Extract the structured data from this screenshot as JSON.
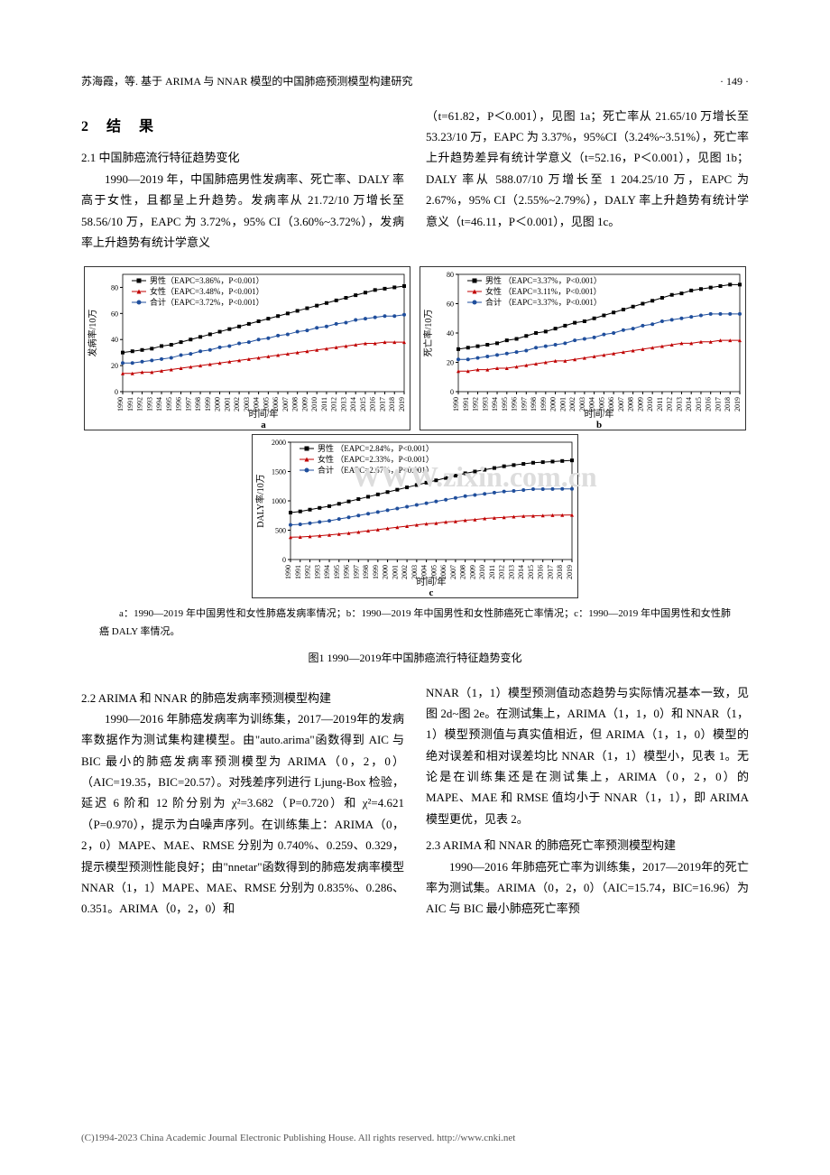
{
  "header": {
    "left": "苏海霞，等. 基于 ARIMA 与 NNAR 模型的中国肺癌预测模型构建研究",
    "right": "· 149 ·"
  },
  "section2": {
    "heading": "2  结  果",
    "sub21_title": "2.1  中国肺癌流行特征趋势变化",
    "sub21_para1_left": "1990—2019 年，中国肺癌男性发病率、死亡率、DALY 率高于女性，且都呈上升趋势。发病率从 21.72/10 万增长至 58.56/10 万，EAPC 为 3.72%，95% CI（3.60%~3.72%），发病率上升趋势有统计学意义",
    "sub21_para1_right": "（t=61.82，P＜0.001），见图 1a；死亡率从 21.65/10 万增长至 53.23/10 万，EAPC 为 3.37%，95%CI（3.24%~3.51%），死亡率上升趋势差异有统计学意义（t=52.16，P＜0.001），见图 1b；DALY 率从 588.07/10 万增长至 1 204.25/10 万，EAPC 为 2.67%，95% CI（2.55%~2.79%），DALY 率上升趋势有统计学意义（t=46.11，P＜0.001），见图 1c。"
  },
  "fig1": {
    "caption": "a：1990—2019 年中国男性和女性肺癌发病率情况；b：1990—2019 年中国男性和女性肺癌死亡率情况；c：1990—2019 年中国男性和女性肺癌 DALY 率情况。",
    "title": "图1  1990—2019年中国肺癌流行特征趋势变化",
    "watermark": "WWW.zixin.com.cn",
    "chart_a": {
      "type": "line",
      "ylabel": "发病率/10万",
      "xlabel": "时间/年",
      "sub_label": "a",
      "legends": [
        "男性（EAPC=3.86%，P<0.001）",
        "女性（EAPC=3.48%，P<0.001）",
        "合计（EAPC=3.72%，P<0.001）"
      ],
      "colors": [
        "#000000",
        "#c00000",
        "#1f4e9c"
      ],
      "markers": [
        "square",
        "triangle",
        "circle"
      ],
      "years": [
        1990,
        1991,
        1992,
        1993,
        1994,
        1995,
        1996,
        1997,
        1998,
        1999,
        2000,
        2001,
        2002,
        2003,
        2004,
        2005,
        2006,
        2007,
        2008,
        2009,
        2010,
        2011,
        2012,
        2013,
        2014,
        2015,
        2016,
        2017,
        2018,
        2019
      ],
      "series": [
        [
          30,
          31,
          32,
          33,
          35,
          36,
          38,
          40,
          42,
          44,
          46,
          48,
          50,
          52,
          54,
          56,
          58,
          60,
          62,
          64,
          66,
          68,
          70,
          72,
          74,
          76,
          78,
          79,
          80,
          81
        ],
        [
          14,
          14,
          15,
          15,
          16,
          17,
          18,
          19,
          20,
          21,
          22,
          23,
          24,
          25,
          26,
          27,
          28,
          29,
          30,
          31,
          32,
          33,
          34,
          35,
          36,
          37,
          37,
          38,
          38,
          38
        ],
        [
          22,
          22,
          23,
          24,
          25,
          26,
          28,
          29,
          31,
          32,
          34,
          35,
          37,
          38,
          40,
          41,
          43,
          44,
          46,
          47,
          49,
          50,
          52,
          53,
          55,
          56,
          57,
          58,
          58,
          59
        ]
      ],
      "ylim": [
        0,
        90
      ],
      "yticks": [
        0,
        20,
        40,
        60,
        80
      ],
      "background_color": "#ffffff",
      "grid_color": "#e0e0e0",
      "line_width": 1,
      "marker_size": 2
    },
    "chart_b": {
      "type": "line",
      "ylabel": "死亡率/10万",
      "xlabel": "时间/年",
      "sub_label": "b",
      "legends": [
        "男性 （EAPC=3.37%，P<0.001）",
        "女性 （EAPC=3.11%，P<0.001）",
        "合计 （EAPC=3.37%，P<0.001）"
      ],
      "colors": [
        "#000000",
        "#c00000",
        "#1f4e9c"
      ],
      "markers": [
        "square",
        "triangle",
        "circle"
      ],
      "years": [
        1990,
        1991,
        1992,
        1993,
        1994,
        1995,
        1996,
        1997,
        1998,
        1999,
        2000,
        2001,
        2002,
        2003,
        2004,
        2005,
        2006,
        2007,
        2008,
        2009,
        2010,
        2011,
        2012,
        2013,
        2014,
        2015,
        2016,
        2017,
        2018,
        2019
      ],
      "series": [
        [
          29,
          30,
          31,
          32,
          33,
          35,
          36,
          38,
          40,
          41,
          43,
          45,
          47,
          48,
          50,
          52,
          54,
          56,
          58,
          60,
          62,
          64,
          66,
          67,
          69,
          70,
          71,
          72,
          73,
          73
        ],
        [
          14,
          14,
          15,
          15,
          16,
          16,
          17,
          18,
          19,
          20,
          21,
          21,
          22,
          23,
          24,
          25,
          26,
          27,
          28,
          29,
          30,
          31,
          32,
          33,
          33,
          34,
          34,
          35,
          35,
          35
        ],
        [
          22,
          22,
          23,
          24,
          25,
          26,
          27,
          28,
          30,
          31,
          32,
          33,
          35,
          36,
          37,
          39,
          40,
          42,
          43,
          45,
          46,
          48,
          49,
          50,
          51,
          52,
          53,
          53,
          53,
          53
        ]
      ],
      "ylim": [
        0,
        80
      ],
      "yticks": [
        0,
        20,
        40,
        60,
        80
      ],
      "background_color": "#ffffff",
      "grid_color": "#e0e0e0",
      "line_width": 1,
      "marker_size": 2
    },
    "chart_c": {
      "type": "line",
      "ylabel": "DALY率/10万",
      "xlabel": "时间/年",
      "sub_label": "c",
      "legends": [
        "男性 （EAPC=2.84%，P<0.001）",
        "女性 （EAPC=2.33%，P<0.001）",
        "合计 （EAPC=2.67%，P<0.001）"
      ],
      "colors": [
        "#000000",
        "#c00000",
        "#1f4e9c"
      ],
      "markers": [
        "square",
        "triangle",
        "circle"
      ],
      "years": [
        1990,
        1991,
        1992,
        1993,
        1994,
        1995,
        1996,
        1997,
        1998,
        1999,
        2000,
        2001,
        2002,
        2003,
        2004,
        2005,
        2006,
        2007,
        2008,
        2009,
        2010,
        2011,
        2012,
        2013,
        2014,
        2015,
        2016,
        2017,
        2018,
        2019
      ],
      "series": [
        [
          800,
          820,
          850,
          880,
          910,
          950,
          990,
          1030,
          1070,
          1110,
          1150,
          1190,
          1230,
          1270,
          1310,
          1350,
          1390,
          1430,
          1470,
          1500,
          1530,
          1560,
          1590,
          1610,
          1630,
          1650,
          1660,
          1670,
          1680,
          1690
        ],
        [
          380,
          385,
          395,
          405,
          420,
          435,
          450,
          470,
          490,
          510,
          530,
          550,
          570,
          590,
          610,
          620,
          640,
          650,
          670,
          680,
          700,
          710,
          720,
          730,
          740,
          745,
          750,
          755,
          758,
          760
        ],
        [
          590,
          600,
          620,
          640,
          660,
          690,
          720,
          750,
          780,
          810,
          840,
          870,
          900,
          930,
          960,
          990,
          1020,
          1050,
          1080,
          1100,
          1120,
          1140,
          1160,
          1170,
          1185,
          1200,
          1200,
          1202,
          1203,
          1204
        ]
      ],
      "ylim": [
        0,
        2000
      ],
      "yticks": [
        0,
        500,
        1000,
        1500,
        2000
      ],
      "background_color": "#ffffff",
      "grid_color": "#e0e0e0",
      "line_width": 1,
      "marker_size": 2
    }
  },
  "section2b": {
    "sub22_title": "2.2  ARIMA 和 NNAR 的肺癌发病率预测模型构建",
    "sub22_para_left": "1990—2016 年肺癌发病率为训练集，2017—2019年的发病率数据作为测试集构建模型。由\"auto.arima\"函数得到 AIC 与 BIC 最小的肺癌发病率预测模型为 ARIMA（0，2，0）（AIC=19.35，BIC=20.57）。对残差序列进行 Ljung-Box 检验，延迟 6 阶和 12 阶分别为 χ²=3.682（P=0.720）和 χ²=4.621（P=0.970），提示为白噪声序列。在训练集上：ARIMA（0，2，0）MAPE、MAE、RMSE 分别为 0.740%、0.259、0.329，提示模型预测性能良好；由\"nnetar\"函数得到的肺癌发病率模型 NNAR（1，1）MAPE、MAE、RMSE 分别为 0.835%、0.286、0.351。ARIMA（0，2，0）和",
    "sub22_para_right": "NNAR（1，1）模型预测值动态趋势与实际情况基本一致，见图 2d~图 2e。在测试集上，ARIMA（1，1，0）和 NNAR（1，1）模型预测值与真实值相近，但 ARIMA（1，1，0）模型的绝对误差和相对误差均比 NNAR（1，1）模型小，见表 1。无论是在训练集还是在测试集上，ARIMA（0，2，0）的 MAPE、MAE 和 RMSE 值均小于 NNAR（1，1），即 ARIMA 模型更优，见表 2。",
    "sub23_title": "2.3  ARIMA 和 NNAR 的肺癌死亡率预测模型构建",
    "sub23_para_right": "1990—2016 年肺癌死亡率为训练集，2017—2019年的死亡率为测试集。ARIMA（0，2，0）（AIC=15.74，BIC=16.96）为 AIC 与 BIC 最小肺癌死亡率预"
  },
  "footer": {
    "text": "(C)1994-2023 China Academic Journal Electronic Publishing House. All rights reserved.    http://www.cnki.net"
  }
}
